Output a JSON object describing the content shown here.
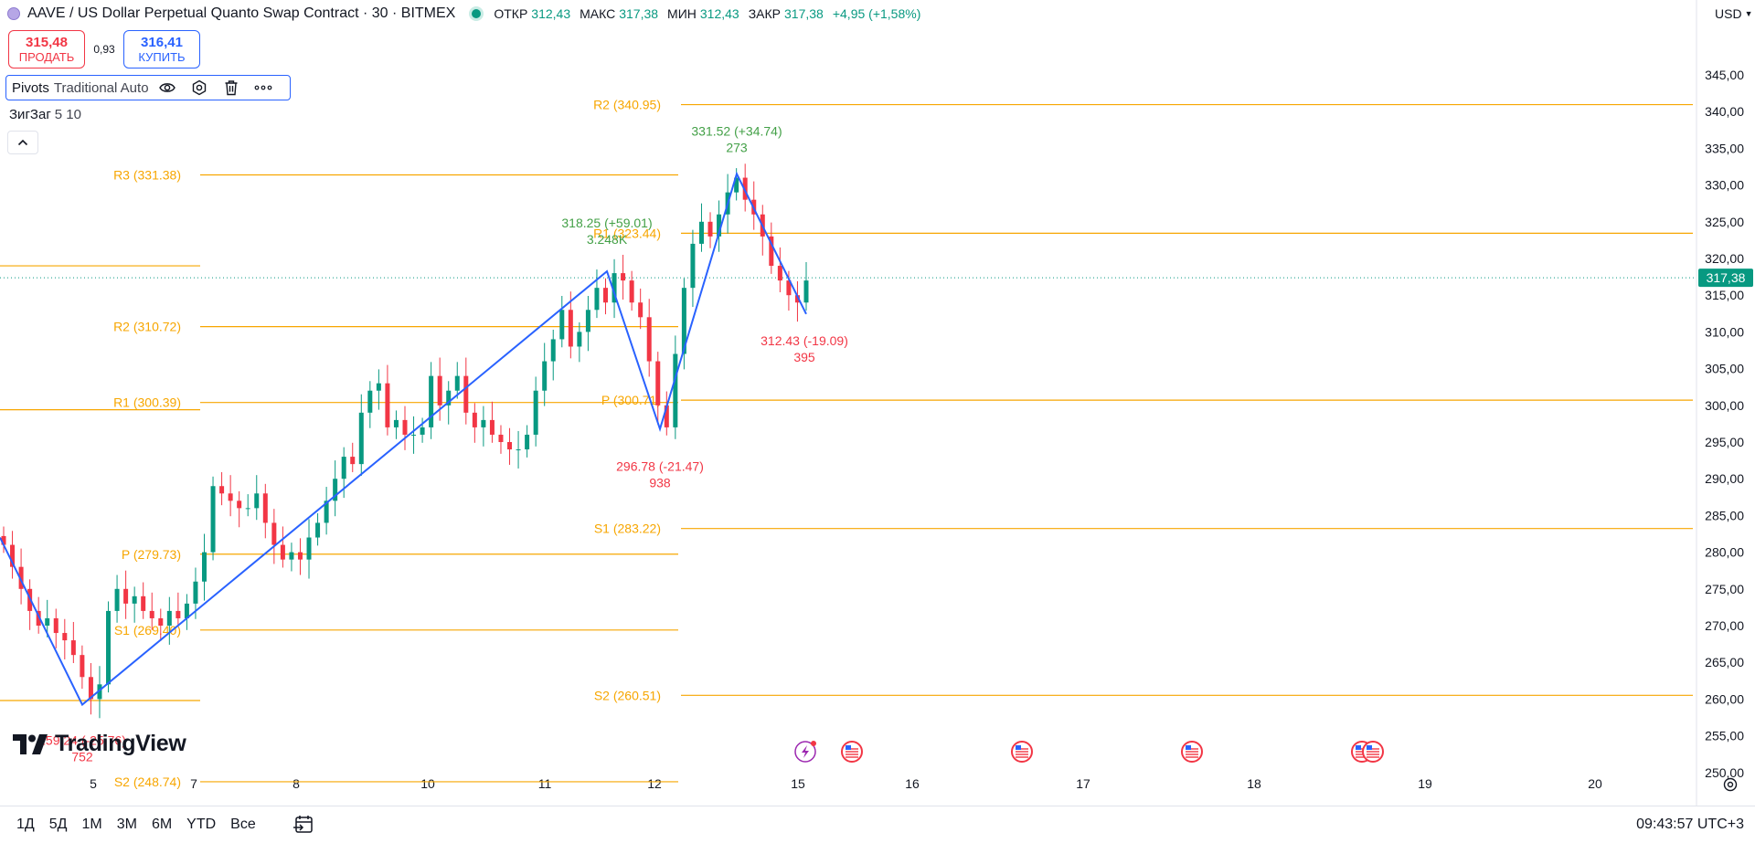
{
  "header": {
    "title": "AAVE / US Dollar Perpetual Quanto Swap Contract · 30 · BITMEX",
    "ohlc": {
      "open_label": "ОТКР",
      "open": "312,43",
      "high_label": "МАКС",
      "high": "317,38",
      "low_label": "МИН",
      "low": "312,43",
      "close_label": "ЗАКР",
      "close": "317,38",
      "change": "+4,95 (+1,58%)"
    }
  },
  "trade": {
    "sell_price": "315,48",
    "sell_label": "ПРОДАТЬ",
    "spread": "0,93",
    "buy_price": "316,41",
    "buy_label": "КУПИТЬ"
  },
  "indicators": {
    "pivots_name": "Pivots",
    "pivots_params": "Traditional Auto",
    "zigzag_name": "ЗигЗаг",
    "zigzag_params": "5 10"
  },
  "currency": "USD",
  "logo_text": "TradingView",
  "chart_data": {
    "type": "candlestick",
    "price_axis": {
      "ticks": [
        "345,00",
        "340,00",
        "335,00",
        "330,00",
        "325,00",
        "320,00",
        "315,00",
        "310,00",
        "305,00",
        "300,00",
        "295,00",
        "290,00",
        "285,00",
        "280,00",
        "275,00",
        "270,00",
        "265,00",
        "260,00",
        "255,00",
        "250,00"
      ],
      "tick_values": [
        345,
        340,
        335,
        330,
        325,
        320,
        315,
        310,
        305,
        300,
        295,
        290,
        285,
        280,
        275,
        270,
        265,
        260,
        255,
        250
      ],
      "last_price": 317.38,
      "last_price_label": "317,38"
    },
    "time_axis": [
      "5",
      "7",
      "8",
      "10",
      "11",
      "12",
      "15",
      "16",
      "17",
      "18",
      "19",
      "20"
    ],
    "pivot_sets": [
      {
        "period": "previous",
        "levels": [
          {
            "label": "R3 (331.38)",
            "value": 331.38
          },
          {
            "label": "R2 (310.72)",
            "value": 310.72
          },
          {
            "label": "R1 (300.39)",
            "value": 300.39
          },
          {
            "label": "P (279.73)",
            "value": 279.73
          },
          {
            "label": "S1 (269.40)",
            "value": 269.4
          },
          {
            "label": "S2 (248.74)",
            "value": 248.74
          }
        ]
      },
      {
        "period": "current",
        "levels": [
          {
            "label": "R2 (340.95)",
            "value": 340.95
          },
          {
            "label": "R1 (323.44)",
            "value": 323.44
          },
          {
            "label": "P (300.71)",
            "value": 300.71
          },
          {
            "label": "S1 (283.22)",
            "value": 283.22
          },
          {
            "label": "S2 (260.51)",
            "value": 260.51
          }
        ]
      }
    ],
    "zigzag": [
      {
        "price": 282.0
      },
      {
        "price": 259.24,
        "label": "259.24 (-25.76)",
        "volume": "752"
      },
      {
        "price": 318.25,
        "label": "318.25 (+59.01)",
        "volume": "3.248K"
      },
      {
        "price": 296.78,
        "label": "296.78 (-21.47)",
        "volume": "938"
      },
      {
        "price": 331.52,
        "label": "331.52 (+34.74)",
        "volume": "273"
      },
      {
        "price": 312.43,
        "label": "312.43 (-19.09)",
        "volume": "395"
      }
    ],
    "candle_closes": [
      281,
      278,
      275,
      272,
      270,
      271,
      269,
      268,
      266,
      263,
      260,
      262,
      272,
      275,
      273,
      274,
      272,
      271,
      270,
      272,
      271,
      273,
      276,
      280,
      289,
      288,
      287,
      286,
      286,
      288,
      284,
      281,
      279,
      280,
      279,
      282,
      284,
      287,
      290,
      293,
      292,
      299,
      302,
      303,
      297,
      298,
      296,
      296,
      297,
      304,
      300,
      302,
      304,
      299,
      297,
      298,
      296,
      295,
      294,
      294,
      296,
      302,
      306,
      309,
      313,
      308,
      310,
      313,
      316,
      314,
      318,
      317,
      314,
      312,
      306,
      300,
      297,
      307,
      316,
      322,
      325,
      323,
      326,
      329,
      331,
      328,
      326,
      323,
      319,
      317,
      315,
      314,
      317
    ],
    "events": [
      "lightning",
      "flag-us",
      "flag-us",
      "flag-us",
      "flag-us-double"
    ]
  },
  "bottom_bar": {
    "ranges": [
      "1Д",
      "5Д",
      "1М",
      "3М",
      "6М",
      "YTD",
      "Все"
    ],
    "clock": "09:43:57 UTC+3"
  },
  "colors": {
    "up": "#089981",
    "down": "#f23645",
    "pivot": "#f7a600",
    "zigzag": "#2962ff",
    "zigzag_up_label": "#43a047",
    "zigzag_down_label": "#f23645"
  }
}
